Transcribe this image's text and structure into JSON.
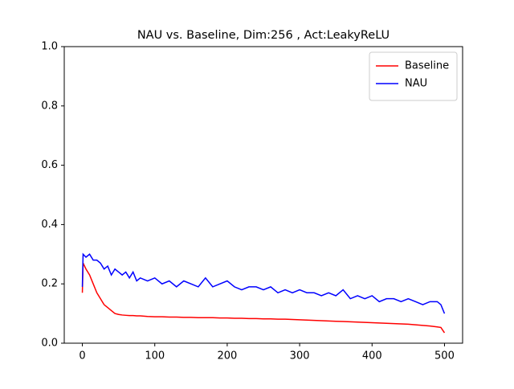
{
  "chart_data": {
    "type": "line",
    "title": "NAU vs. Baseline, Dim:256 , Act:LeakyReLU",
    "x": [
      0,
      1,
      5,
      10,
      15,
      20,
      25,
      30,
      35,
      40,
      45,
      50,
      55,
      60,
      65,
      70,
      75,
      80,
      90,
      100,
      110,
      120,
      130,
      140,
      150,
      160,
      170,
      180,
      190,
      200,
      210,
      220,
      230,
      240,
      250,
      260,
      270,
      280,
      290,
      300,
      310,
      320,
      330,
      340,
      350,
      360,
      370,
      380,
      390,
      400,
      410,
      420,
      430,
      440,
      450,
      460,
      470,
      480,
      490,
      495,
      500
    ],
    "series": [
      {
        "name": "Baseline",
        "color": "#ff0000",
        "values": [
          0.17,
          0.27,
          0.25,
          0.23,
          0.2,
          0.17,
          0.15,
          0.13,
          0.12,
          0.11,
          0.1,
          0.097,
          0.095,
          0.094,
          0.093,
          0.093,
          0.092,
          0.092,
          0.09,
          0.089,
          0.089,
          0.088,
          0.088,
          0.087,
          0.087,
          0.086,
          0.086,
          0.086,
          0.085,
          0.085,
          0.084,
          0.084,
          0.083,
          0.083,
          0.082,
          0.082,
          0.081,
          0.081,
          0.08,
          0.079,
          0.078,
          0.077,
          0.076,
          0.075,
          0.074,
          0.073,
          0.072,
          0.071,
          0.07,
          0.069,
          0.068,
          0.067,
          0.066,
          0.065,
          0.064,
          0.062,
          0.06,
          0.058,
          0.055,
          0.053,
          0.035
        ]
      },
      {
        "name": "NAU",
        "color": "#0000ff",
        "values": [
          0.19,
          0.3,
          0.29,
          0.3,
          0.28,
          0.28,
          0.27,
          0.25,
          0.26,
          0.23,
          0.25,
          0.24,
          0.23,
          0.24,
          0.22,
          0.24,
          0.21,
          0.22,
          0.21,
          0.22,
          0.2,
          0.21,
          0.19,
          0.21,
          0.2,
          0.19,
          0.22,
          0.19,
          0.2,
          0.21,
          0.19,
          0.18,
          0.19,
          0.19,
          0.18,
          0.19,
          0.17,
          0.18,
          0.17,
          0.18,
          0.17,
          0.17,
          0.16,
          0.17,
          0.16,
          0.18,
          0.15,
          0.16,
          0.15,
          0.16,
          0.14,
          0.15,
          0.15,
          0.14,
          0.15,
          0.14,
          0.13,
          0.14,
          0.14,
          0.13,
          0.1
        ]
      }
    ],
    "xlim": [
      -25,
      525
    ],
    "xticks": [
      0,
      100,
      200,
      300,
      400,
      500
    ],
    "ylim": [
      0,
      1
    ],
    "yticks": [
      {
        "value": 0,
        "label": "0.0"
      },
      0.2,
      0.4,
      0.6,
      0.8,
      {
        "value": 1,
        "label": "1.0"
      }
    ],
    "legend": "upper right"
  }
}
